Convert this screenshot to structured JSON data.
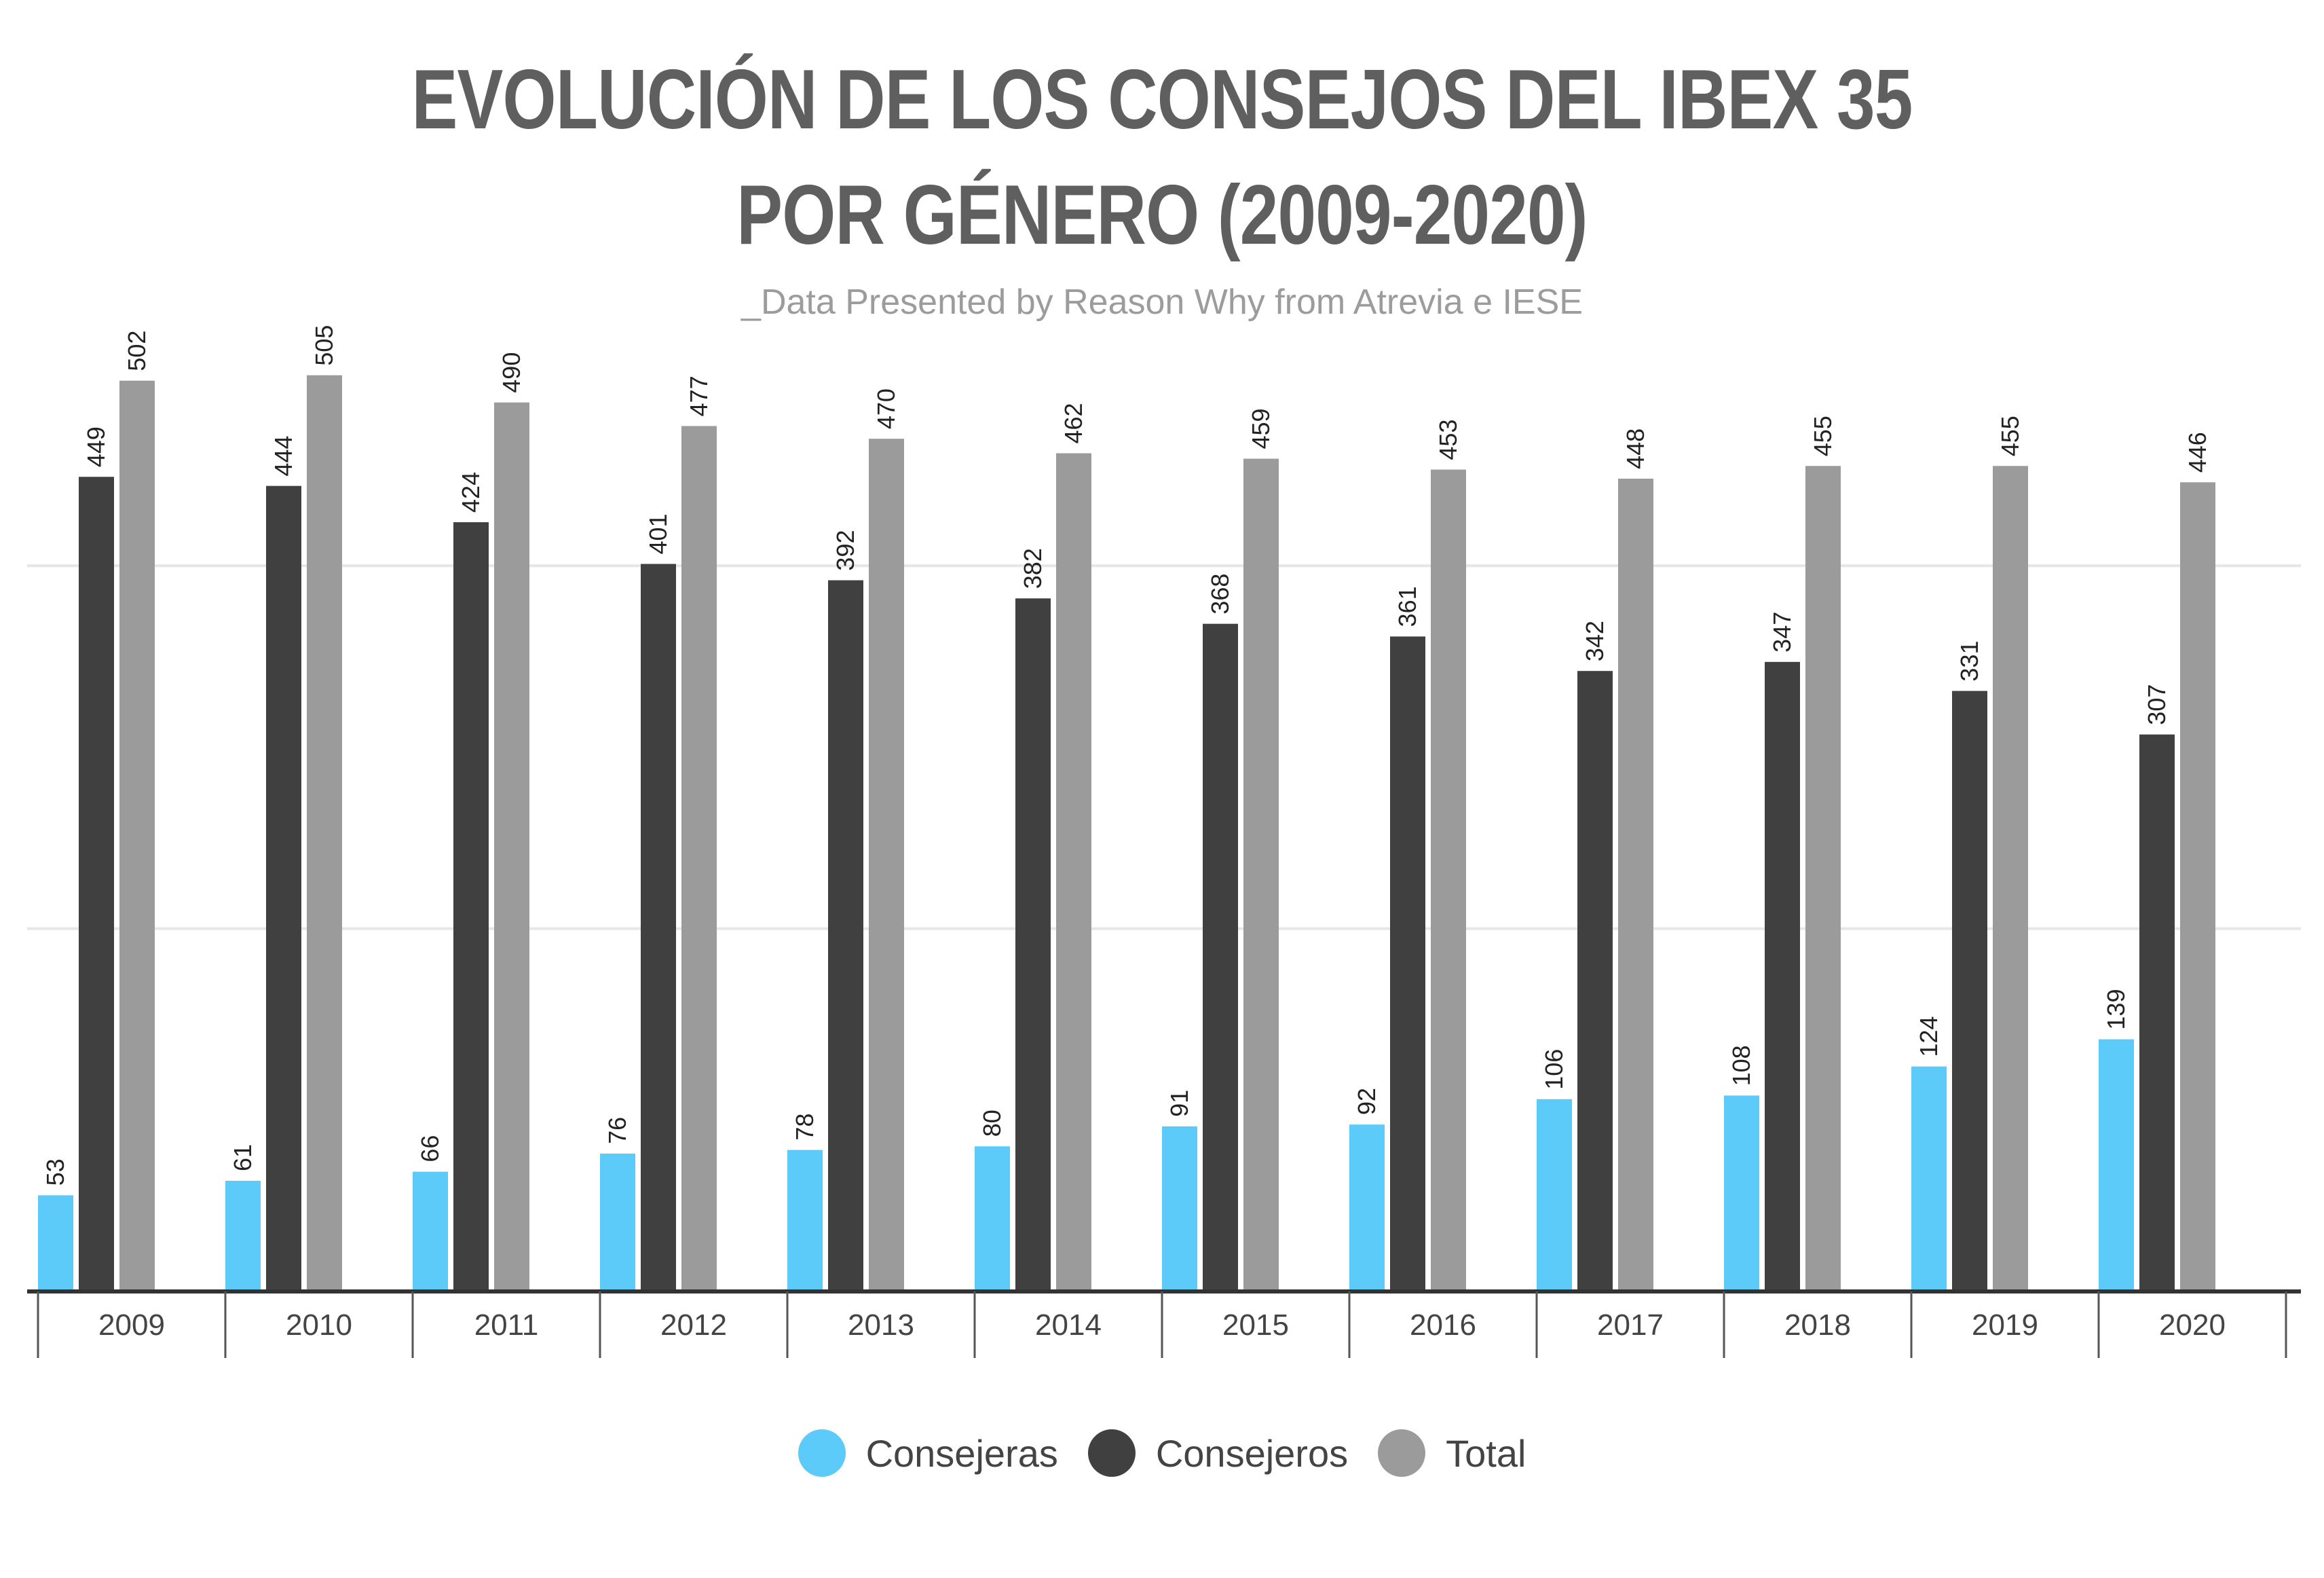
{
  "title_line1": "EVOLUCIÓN DE LOS CONSEJOS DEL IBEX 35",
  "title_line2": "POR GÉNERO (2009-2020)",
  "subtitle": "_Data Presented by Reason Why from Atrevia e IESE",
  "colors": {
    "consejeras": "#5ccbfa",
    "consejeros": "#404040",
    "total": "#9b9b9b",
    "title": "#5f5f5f",
    "subtitle": "#9c9c9c",
    "grid": "#e6e6e6",
    "axis": "#333333"
  },
  "legend": [
    {
      "label": "Consejeras",
      "color": "#5ccbfa"
    },
    {
      "label": "Consejeros",
      "color": "#404040"
    },
    {
      "label": "Total",
      "color": "#9b9b9b"
    }
  ],
  "chart_data": {
    "type": "bar",
    "title": "EVOLUCIÓN DE LOS CONSEJOS DEL IBEX 35 POR GÉNERO (2009-2020)",
    "subtitle": "_Data Presented by Reason Why from Atrevia e IESE",
    "categories": [
      "2009",
      "2010",
      "2011",
      "2012",
      "2013",
      "2014",
      "2015",
      "2016",
      "2017",
      "2018",
      "2019",
      "2020"
    ],
    "series": [
      {
        "name": "Consejeras",
        "values": [
          53,
          61,
          66,
          76,
          78,
          80,
          91,
          92,
          106,
          108,
          124,
          139
        ]
      },
      {
        "name": "Consejeros",
        "values": [
          449,
          444,
          424,
          401,
          392,
          382,
          368,
          361,
          342,
          347,
          331,
          307
        ]
      },
      {
        "name": "Total",
        "values": [
          502,
          505,
          490,
          477,
          470,
          462,
          459,
          453,
          448,
          455,
          455,
          446
        ]
      }
    ],
    "ylim": [
      0,
      530
    ],
    "gridlines": [
      200,
      400
    ],
    "grid": true,
    "legend_position": "bottom-center",
    "data_labels": true
  }
}
